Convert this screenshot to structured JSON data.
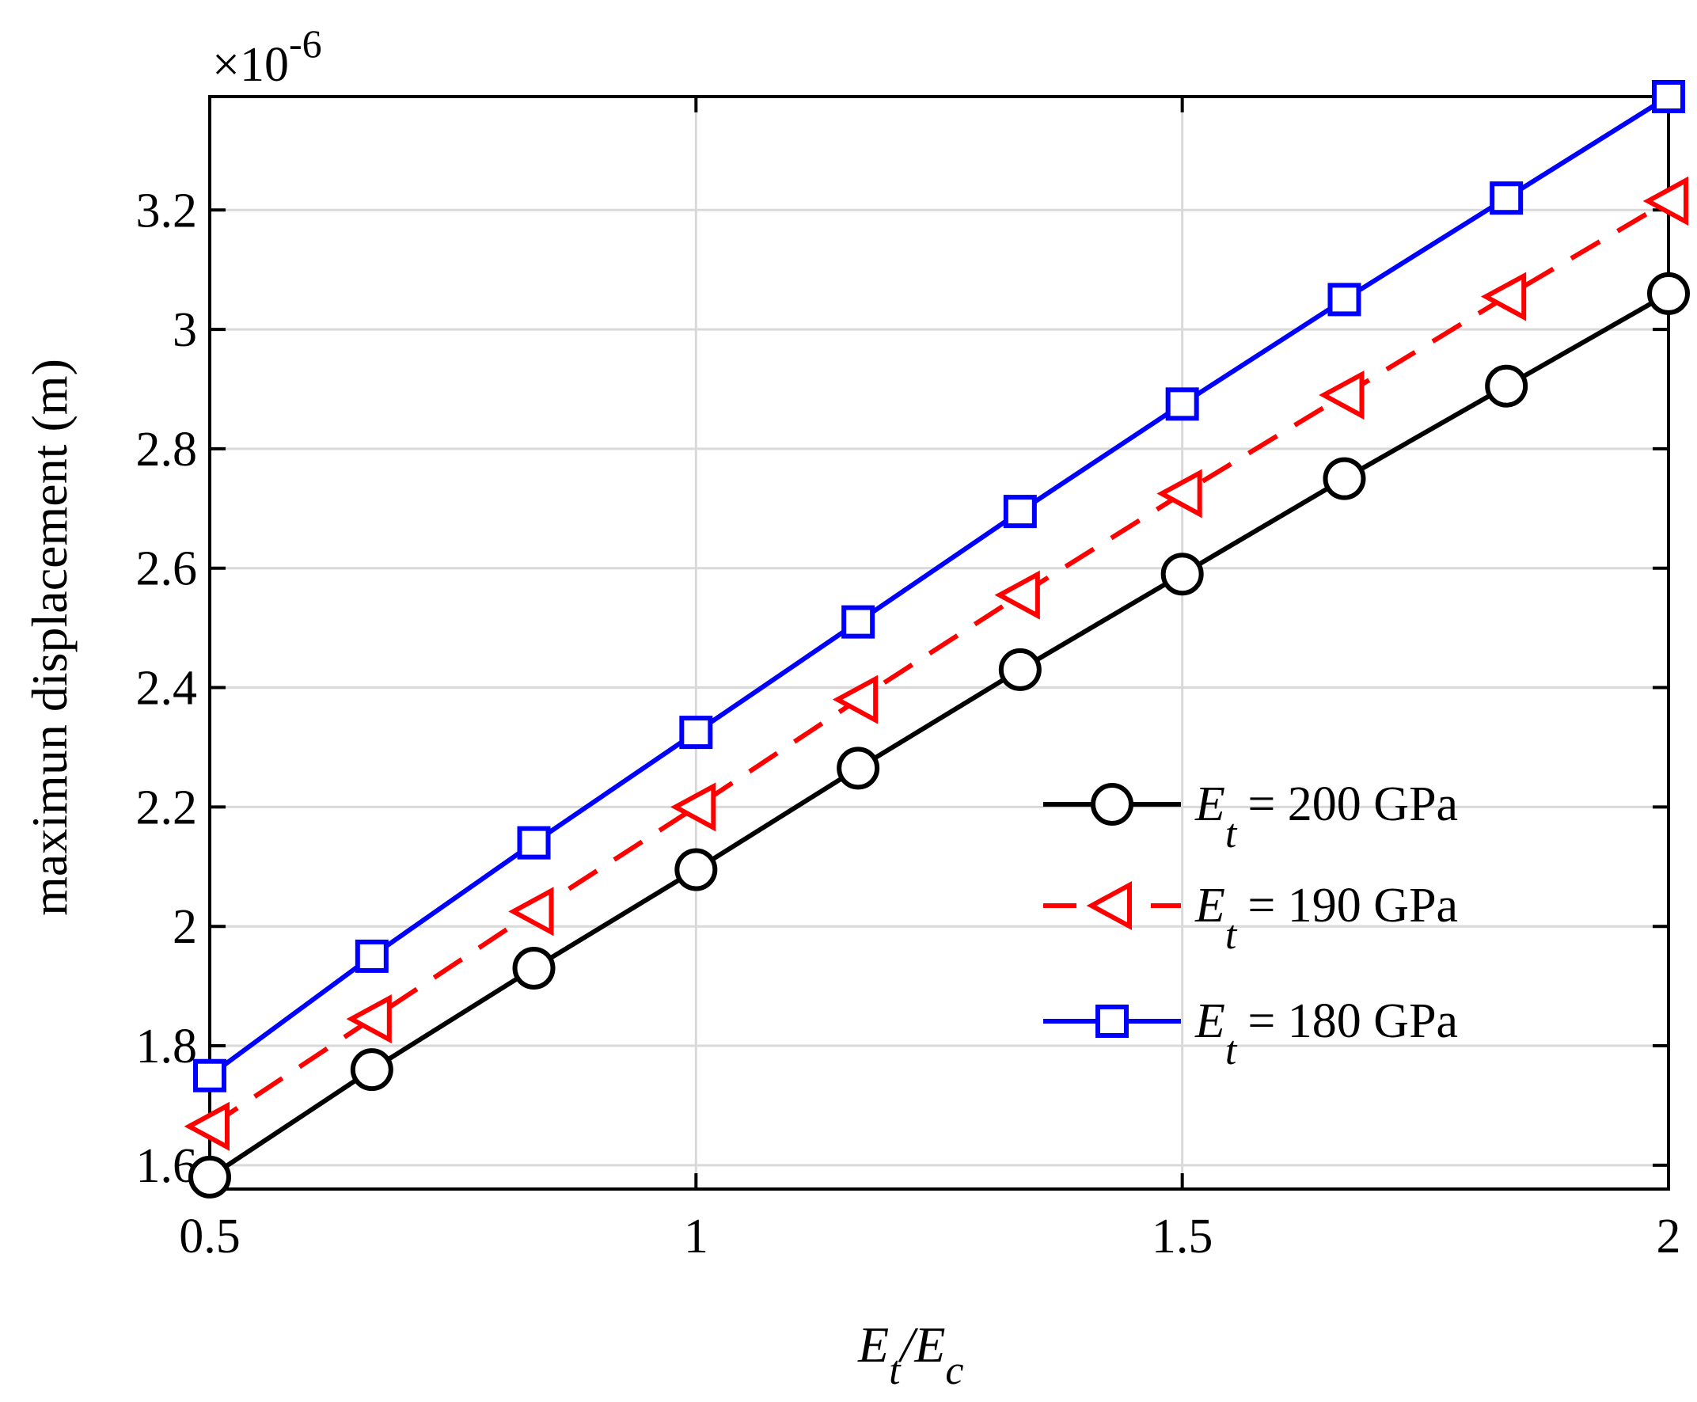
{
  "chart_data": {
    "type": "line",
    "title": "",
    "xlabel": {
      "main": "E",
      "sub1": "t",
      "slash": "/E",
      "sub2": "c"
    },
    "ylabel": "maximun displacement (m)",
    "y_exponent": {
      "prefix": "×10",
      "power": "-6"
    },
    "xlim": [
      0.5,
      2.0
    ],
    "ylim": [
      1.56,
      3.39
    ],
    "x_ticks": [
      0.5,
      1,
      1.5,
      2
    ],
    "x_tick_labels": [
      "0.5",
      "1",
      "1.5",
      "2"
    ],
    "y_ticks": [
      1.6,
      1.8,
      2.0,
      2.2,
      2.4,
      2.6,
      2.8,
      3.0,
      3.2
    ],
    "y_tick_labels": [
      "1.6",
      "1.8",
      "2",
      "2.2",
      "2.4",
      "2.6",
      "2.8",
      "3",
      "3.2"
    ],
    "grid": true,
    "legend_position": "center-right",
    "x": [
      0.5,
      0.6667,
      0.8333,
      1.0,
      1.1667,
      1.3333,
      1.5,
      1.6667,
      1.8333,
      2.0
    ],
    "series": [
      {
        "name": "E_t = 200 GPa",
        "legend": {
          "main": "E",
          "sub": "t",
          "rest": "= 200 GPa"
        },
        "color": "#000000",
        "marker": "circle",
        "linestyle": "solid",
        "values": [
          1.58,
          1.76,
          1.93,
          2.095,
          2.265,
          2.43,
          2.59,
          2.75,
          2.905,
          3.06
        ]
      },
      {
        "name": "E_t = 190 GPa",
        "legend": {
          "main": "E",
          "sub": "t",
          "rest": "= 190 GPa"
        },
        "color": "#ff0000",
        "marker": "triangle-left",
        "linestyle": "dashed",
        "values": [
          1.665,
          1.845,
          2.025,
          2.2,
          2.38,
          2.555,
          2.725,
          2.89,
          3.055,
          3.215
        ]
      },
      {
        "name": "E_t = 180 GPa",
        "legend": {
          "main": "E",
          "sub": "t",
          "rest": "= 180 GPa"
        },
        "color": "#0000ff",
        "marker": "square",
        "linestyle": "solid",
        "values": [
          1.75,
          1.95,
          2.14,
          2.325,
          2.51,
          2.695,
          2.875,
          3.05,
          3.22,
          3.39
        ]
      }
    ]
  }
}
